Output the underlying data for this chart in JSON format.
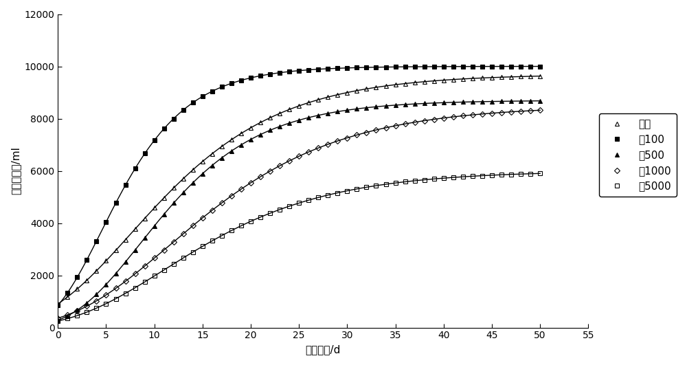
{
  "xlabel": "发酵时间/d",
  "ylabel": "累积产气量/ml",
  "xlim": [
    0,
    55
  ],
  "ylim": [
    0,
    12000
  ],
  "xticks": [
    0,
    5,
    10,
    15,
    20,
    25,
    30,
    35,
    40,
    45,
    50,
    55
  ],
  "yticks": [
    0,
    2000,
    4000,
    6000,
    8000,
    10000,
    12000
  ],
  "series": [
    {
      "label": "油菜",
      "marker": "^",
      "fillstyle": "none",
      "color": "#000000",
      "L": 9700,
      "k": 0.115,
      "t0": 7.5
    },
    {
      "label": "油100",
      "marker": "s",
      "fillstyle": "full",
      "color": "#000000",
      "L": 10000,
      "k": 0.2,
      "t0": 4.5
    },
    {
      "label": "油500",
      "marker": "^",
      "fillstyle": "full",
      "color": "#000000",
      "L": 8700,
      "k": 0.145,
      "t0": 8.5
    },
    {
      "label": "油1000",
      "marker": "D",
      "fillstyle": "none",
      "color": "#000000",
      "L": 8500,
      "k": 0.1,
      "t0": 11.5
    },
    {
      "label": "油5000",
      "marker": "s",
      "fillstyle": "none",
      "color": "#000000",
      "L": 6000,
      "k": 0.105,
      "t0": 11.0
    }
  ],
  "background_color": "#ffffff",
  "marker_size": 4,
  "linewidth": 1.0,
  "marker_every": 1
}
